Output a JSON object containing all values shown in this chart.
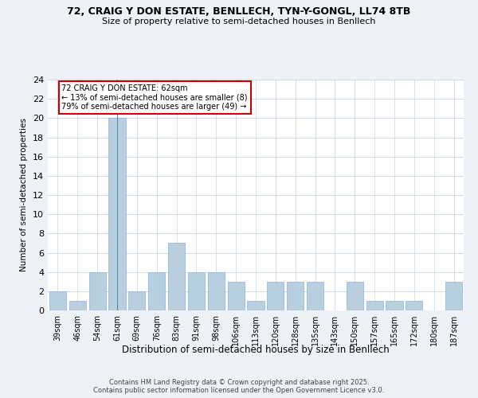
{
  "title": "72, CRAIG Y DON ESTATE, BENLLECH, TYN-Y-GONGL, LL74 8TB",
  "subtitle": "Size of property relative to semi-detached houses in Benllech",
  "xlabel": "Distribution of semi-detached houses by size in Benllech",
  "ylabel": "Number of semi-detached properties",
  "categories": [
    "39sqm",
    "46sqm",
    "54sqm",
    "61sqm",
    "69sqm",
    "76sqm",
    "83sqm",
    "91sqm",
    "98sqm",
    "106sqm",
    "113sqm",
    "120sqm",
    "128sqm",
    "135sqm",
    "143sqm",
    "150sqm",
    "157sqm",
    "165sqm",
    "172sqm",
    "180sqm",
    "187sqm"
  ],
  "values": [
    2,
    1,
    4,
    20,
    2,
    4,
    7,
    4,
    4,
    3,
    1,
    3,
    3,
    3,
    0,
    3,
    1,
    1,
    1,
    0,
    3
  ],
  "highlight_index": 3,
  "bar_color": "#b8cfe0",
  "subject_label": "72 CRAIG Y DON ESTATE: 62sqm",
  "annotation_line1": "← 13% of semi-detached houses are smaller (8)",
  "annotation_line2": "79% of semi-detached houses are larger (49) →",
  "ylim": [
    0,
    24
  ],
  "yticks": [
    0,
    2,
    4,
    6,
    8,
    10,
    12,
    14,
    16,
    18,
    20,
    22,
    24
  ],
  "footer_line1": "Contains HM Land Registry data © Crown copyright and database right 2025.",
  "footer_line2": "Contains public sector information licensed under the Open Government Licence v3.0.",
  "bg_color": "#eef2f7",
  "plot_bg_color": "#ffffff",
  "bar_edge_color": "#8aafe8",
  "box_color": "#cc0000",
  "grid_color": "#c8d4e0"
}
